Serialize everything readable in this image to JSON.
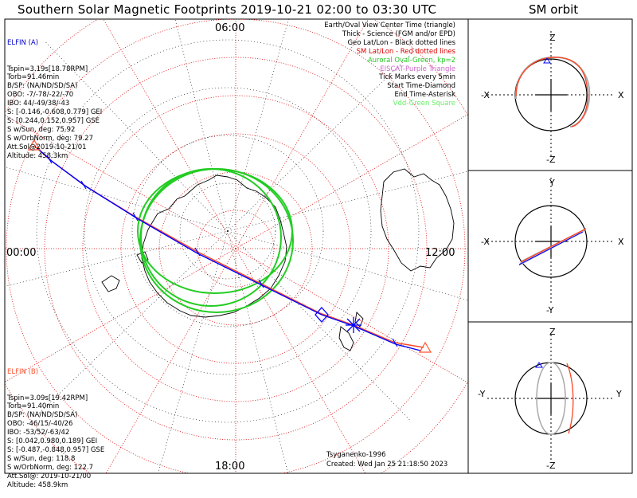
{
  "title": "Southern Solar Magnetic Footprints 2019-10-21 02:00 to 03:30 UTC",
  "orbit_title": "SM orbit",
  "time_labels": {
    "top": "06:00",
    "left": "00:00",
    "right": "12:00",
    "bottom": "18:00"
  },
  "spacecraft_a": {
    "name": "ELFIN (A)",
    "color": "#0000cc",
    "lines": [
      "Tspin=3.19s[18.78RPM]",
      "Torb=91.46min",
      "B/SP: (NA/ND/SD/SA)",
      "OBO: -7/-78/-22/-70",
      "IBO: 44/-49/38/-43",
      "S: [-0.146,-0.608,0.779] GEI",
      "S: [0.244,0.152,0.957] GSE",
      "S w/Sun, deg: 75.92",
      "S w/OrbNorm, deg: 79.27",
      "Att.Sol@2019-10-21/01",
      "Altitude: 458.3km"
    ]
  },
  "spacecraft_b": {
    "name": "ELFIN (B)",
    "color": "#ff5533",
    "lines": [
      "Tspin=3.09s[19.42RPM]",
      "Torb=91.40min",
      "B/SP: (NA/ND/SD/SA)",
      "OBO: -46/15/-40/26",
      "IBO: -53/52/-63/42",
      "S: [0.042,0.980,0.189] GEI",
      "S: [-0.487,-0.848,0.957] GSE",
      "S w/Sun, deg: 118.8",
      "S w/OrbNorm, deg: 122.7",
      "Att.Sol@: 2019-10-21/00",
      "Altitude: 458.9km"
    ]
  },
  "legend": [
    {
      "text": "Earth/Oval View Center Time (triangle)",
      "color": "#000000"
    },
    {
      "text": "Thick - Science (FGM and/or EPD)",
      "color": "#000000"
    },
    {
      "text": "Geo Lat/Lon - Black dotted lines",
      "color": "#000000"
    },
    {
      "text": "SM Lat/Lon - Red dotted lines",
      "color": "#dd0000"
    },
    {
      "text": "Auroral Oval-Green, kp=2",
      "color": "#22cc22"
    },
    {
      "text": "EISCAT-Purple Triangle",
      "color": "#cc66cc"
    },
    {
      "text": "Tick Marks every 5min",
      "color": "#000000"
    },
    {
      "text": "Start Time-Diamond",
      "color": "#000000"
    },
    {
      "text": "End Time-Asterisk",
      "color": "#000000"
    },
    {
      "text": "Vdd-Green Square",
      "color": "#66ee66"
    }
  ],
  "credit": {
    "author": "Tsyganenko-1996",
    "created": "Created: Wed Jan 25 21:18:50 2023"
  },
  "orbit_panels": [
    {
      "top": "Z",
      "bottom": "-Z",
      "left": "-X",
      "right": "X"
    },
    {
      "top": "Y",
      "bottom": "-Y",
      "left": "-X",
      "right": "X"
    },
    {
      "top": "Z",
      "bottom": "-Z",
      "left": "-Y",
      "right": "Y"
    }
  ],
  "colors": {
    "track_a": "#0000ff",
    "track_b": "#ff4422",
    "sm_grid": "#dd0000",
    "oval": "#22cc22",
    "geo_grid": "#000000"
  }
}
